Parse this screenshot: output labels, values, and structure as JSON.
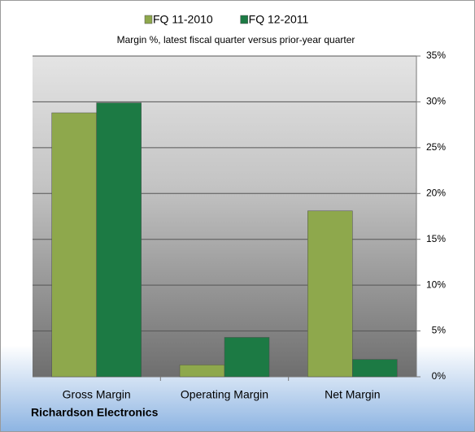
{
  "chart_data": {
    "type": "bar",
    "subtitle": "Margin %,  latest fiscal quarter versus prior-year quarter",
    "annotation": "Richardson Electronics",
    "categories": [
      "Gross Margin",
      "Operating Margin",
      "Net Margin"
    ],
    "series": [
      {
        "name": "FQ 11-2010",
        "color": "#8ea84c",
        "values": [
          28.8,
          1.3,
          18.1
        ]
      },
      {
        "name": "FQ 12-2011",
        "color": "#1c7a44",
        "values": [
          29.9,
          4.3,
          1.9
        ]
      }
    ],
    "ylim": [
      0,
      35
    ],
    "yticks": [
      {
        "value": 0,
        "label": "0%"
      },
      {
        "value": 5,
        "label": "5%"
      },
      {
        "value": 10,
        "label": "10%"
      },
      {
        "value": 15,
        "label": "15%"
      },
      {
        "value": 20,
        "label": "20%"
      },
      {
        "value": 25,
        "label": "25%"
      },
      {
        "value": 30,
        "label": "30%"
      },
      {
        "value": 35,
        "label": "35%"
      }
    ],
    "grid": true,
    "legend": "top"
  }
}
